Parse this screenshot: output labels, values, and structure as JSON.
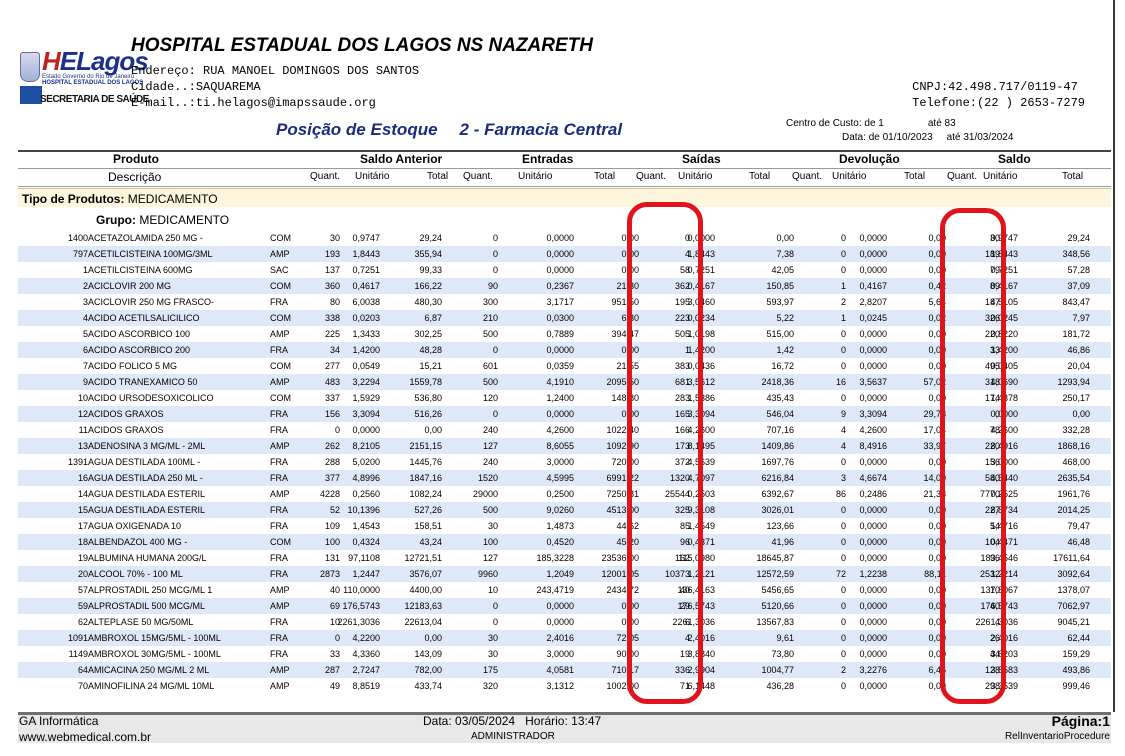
{
  "logo": {
    "brand_prefix": "H",
    "brand_rest": "ELagos",
    "line1": "Estado Governo do Rio de Janeiro",
    "line2": "HOSPITAL ESTADUAL DOS LAGOS",
    "line3": "SECRETARIA DE SAÚDE"
  },
  "header": {
    "title": "HOSPITAL ESTADUAL DOS LAGOS NS NAZARETH",
    "endereco_label": "Endereço:",
    "endereco": "RUA MANOEL DOMINGOS DOS SANTOS",
    "cidade_label": "Cidade..:",
    "cidade": "SAQUAREMA",
    "email_label": "E-mail..:",
    "email": "ti.helagos@imapssaude.org",
    "cnpj_label": "CNPJ:",
    "cnpj": "42.498.717/0119-47",
    "telefone_label": "Telefone:",
    "telefone": "(22 ) 2653-7279"
  },
  "report": {
    "title": "Posição de Estoque",
    "subtitle": "2 - Farmacia Central",
    "centro_label": "Centro de Custo:",
    "centro_de": "de 1",
    "ate_label": "até",
    "centro_ate": "83",
    "data_label": "Data:",
    "data_de": "de 01/10/2023",
    "data_ate": "31/03/2024"
  },
  "columns": {
    "groups": [
      "Produto",
      "Saldo Anterior",
      "Entradas",
      "Saídas",
      "Devolução",
      "Saldo"
    ],
    "sub": [
      "Descrição",
      "Quant.",
      "Unitário",
      "Total",
      "Quant.",
      "Unitário",
      "Total",
      "Quant.",
      "Unitário",
      "Total",
      "Quant.",
      "Unitário",
      "Total",
      "Quant.",
      "Unitário",
      "Total"
    ]
  },
  "tipo": {
    "label": "Tipo de Produtos:",
    "value": "MEDICAMENTO"
  },
  "grupo": {
    "label": "Grupo:",
    "value": "MEDICAMENTO"
  },
  "rows": [
    [
      "1400",
      "ACETAZOLAMIDA 250 MG -",
      "COM",
      "30",
      "0,9747",
      "29,24",
      "0",
      "0,0000",
      "0,00",
      "0",
      "0,0000",
      "0,00",
      "0",
      "0,0000",
      "0,00",
      "30",
      "0,9747",
      "29,24"
    ],
    [
      "797",
      "ACETILCISTEINA 100MG/3ML",
      "AMP",
      "193",
      "1,8443",
      "355,94",
      "0",
      "0,0000",
      "0,00",
      "4",
      "1,8443",
      "7,38",
      "0",
      "0,0000",
      "0,00",
      "189",
      "1,8443",
      "348,56"
    ],
    [
      "1",
      "ACETILCISTEINA 600MG",
      "SAC",
      "137",
      "0,7251",
      "99,33",
      "0",
      "0,0000",
      "0,00",
      "58",
      "0,7251",
      "42,05",
      "0",
      "0,0000",
      "0,00",
      "79",
      "0,7251",
      "57,28"
    ],
    [
      "2",
      "ACICLOVIR 200 MG",
      "COM",
      "360",
      "0,4617",
      "166,22",
      "90",
      "0,2367",
      "21,30",
      "362",
      "0,4167",
      "150,85",
      "1",
      "0,4167",
      "0,42",
      "89",
      "0,4167",
      "37,09"
    ],
    [
      "3",
      "ACICLOVIR 250 MG FRASCO-",
      "FRA",
      "80",
      "6,0038",
      "480,30",
      "300",
      "3,1717",
      "951,50",
      "195",
      "3,0460",
      "593,97",
      "2",
      "2,8207",
      "5,64",
      "187",
      "4,5105",
      "843,47"
    ],
    [
      "4",
      "ACIDO ACETILSALICILICO",
      "COM",
      "338",
      "0,0203",
      "6,87",
      "210",
      "0,0300",
      "6,30",
      "223",
      "0,0234",
      "5,22",
      "1",
      "0,0245",
      "0,02",
      "326",
      "0,0245",
      "7,97"
    ],
    [
      "5",
      "ACIDO ASCORBICO 100",
      "AMP",
      "225",
      "1,3433",
      "302,25",
      "500",
      "0,7889",
      "394,47",
      "505",
      "1,0198",
      "515,00",
      "0",
      "0,0000",
      "0,00",
      "220",
      "0,8220",
      "181,72"
    ],
    [
      "6",
      "ACIDO ASCORBICO 200",
      "FRA",
      "34",
      "1,4200",
      "48,28",
      "0",
      "0,0000",
      "0,00",
      "1",
      "1,4200",
      "1,42",
      "0",
      "0,0000",
      "0,00",
      "33",
      "1,4200",
      "46,86"
    ],
    [
      "7",
      "ACIDO FOLICO 5 MG",
      "COM",
      "277",
      "0,0549",
      "15,21",
      "601",
      "0,0359",
      "21,55",
      "383",
      "0,0436",
      "16,72",
      "0",
      "0,0000",
      "0,00",
      "495",
      "0,0405",
      "20,04"
    ],
    [
      "9",
      "ACIDO TRANEXAMICO 50",
      "AMP",
      "483",
      "3,2294",
      "1559,78",
      "500",
      "4,1910",
      "2095,50",
      "681",
      "3,5612",
      "2418,36",
      "16",
      "3,5637",
      "57,02",
      "318",
      "4,0690",
      "1293,94"
    ],
    [
      "10",
      "ACIDO URSODESOXICOLICO",
      "COM",
      "337",
      "1,5929",
      "536,80",
      "120",
      "1,2400",
      "148,80",
      "283",
      "1,5386",
      "435,43",
      "0",
      "0,0000",
      "0,00",
      "174",
      "1,4378",
      "250,17"
    ],
    [
      "12",
      "ACIDOS GRAXOS",
      "FRA",
      "156",
      "3,3094",
      "516,26",
      "0",
      "0,0000",
      "0,00",
      "165",
      "3,3094",
      "546,04",
      "9",
      "3,3094",
      "29,78",
      "0",
      "0,0000",
      "0,00"
    ],
    [
      "11",
      "ACIDOS GRAXOS",
      "FRA",
      "0",
      "0,0000",
      "0,00",
      "240",
      "4,2600",
      "1022,40",
      "166",
      "4,2600",
      "707,16",
      "4",
      "4,2600",
      "17,04",
      "78",
      "4,2600",
      "332,28"
    ],
    [
      "13",
      "ADENOSINA 3 MG/ML - 2ML",
      "AMP",
      "262",
      "8,2105",
      "2151,15",
      "127",
      "8,6055",
      "1092,90",
      "173",
      "8,1495",
      "1409,86",
      "4",
      "8,4916",
      "33,97",
      "220",
      "8,4916",
      "1868,16"
    ],
    [
      "1391",
      "AGUA DESTILADA 100ML -",
      "FRA",
      "288",
      "5,0200",
      "1445,76",
      "240",
      "3,0000",
      "720,00",
      "372",
      "4,5639",
      "1697,76",
      "0",
      "0,0000",
      "0,00",
      "156",
      "3,0000",
      "468,00"
    ],
    [
      "16",
      "AGUA DESTILADA 250 ML -",
      "FRA",
      "377",
      "4,8996",
      "1847,16",
      "1520",
      "4,5995",
      "6991,22",
      "1320",
      "4,7097",
      "6216,84",
      "3",
      "4,6674",
      "14,00",
      "580",
      "4,5440",
      "2635,54"
    ],
    [
      "14",
      "AGUA DESTILADA ESTERIL",
      "AMP",
      "4228",
      "0,2560",
      "1082,24",
      "29000",
      "0,2500",
      "7250,81",
      "25544",
      "0,2503",
      "6392,67",
      "86",
      "0,2486",
      "21,38",
      "7770",
      "0,2525",
      "1961,76"
    ],
    [
      "15",
      "AGUA DESTILADA ESTERIL",
      "FRA",
      "52",
      "10,1396",
      "527,26",
      "500",
      "9,0260",
      "4513,00",
      "325",
      "9,3108",
      "3026,01",
      "0",
      "0,0000",
      "0,00",
      "227",
      "8,8734",
      "2014,25"
    ],
    [
      "17",
      "AGUA OXIGENADA 10",
      "FRA",
      "109",
      "1,4543",
      "158,51",
      "30",
      "1,4873",
      "44,62",
      "85",
      "1,4549",
      "123,66",
      "0",
      "0,0000",
      "0,00",
      "54",
      "1,4716",
      "79,47"
    ],
    [
      "18",
      "ALBENDAZOL 400 MG -",
      "COM",
      "100",
      "0,4324",
      "43,24",
      "100",
      "0,4520",
      "45,20",
      "96",
      "0,4371",
      "41,96",
      "0",
      "0,0000",
      "0,00",
      "104",
      "0,4471",
      "46,48"
    ],
    [
      "19",
      "ALBUMINA HUMANA 200G/L",
      "FRA",
      "131",
      "97,1108",
      "12721,51",
      "127",
      "185,3228",
      "23536,00",
      "162",
      "115,0980",
      "18645,87",
      "0",
      "0,0000",
      "0,00",
      "96",
      "183,4546",
      "17611,64"
    ],
    [
      "20",
      "ALCOOL 70% - 100 ML",
      "FRA",
      "2873",
      "1,2447",
      "3576,07",
      "9960",
      "1,2049",
      "12001,05",
      "10373",
      "1,2121",
      "12572,59",
      "72",
      "1,2238",
      "88,11",
      "2532",
      "1,2214",
      "3092,64"
    ],
    [
      "57",
      "ALPROSTADIL 250 MCG/ML 1",
      "AMP",
      "40",
      "110,0000",
      "4400,00",
      "10",
      "243,4719",
      "2434,72",
      "40",
      "136,4163",
      "5456,65",
      "0",
      "0,0000",
      "0,00",
      "10",
      "137,8067",
      "1378,07"
    ],
    [
      "59",
      "ALPROSTADIL 500 MCG/ML",
      "AMP",
      "69",
      "176,5743",
      "12183,63",
      "0",
      "0,0000",
      "0,00",
      "29",
      "176,5743",
      "5120,66",
      "0",
      "0,0000",
      "0,00",
      "40",
      "176,5743",
      "7062,97"
    ],
    [
      "62",
      "ALTEPLASE 50 MG/50ML",
      "FRA",
      "10",
      "2261,3036",
      "22613,04",
      "0",
      "0,0000",
      "0,00",
      "6",
      "2261,3036",
      "13567,83",
      "0",
      "0,0000",
      "0,00",
      "4",
      "2261,3036",
      "9045,21"
    ],
    [
      "1091",
      "AMBROXOL 15MG/5ML - 100ML",
      "FRA",
      "0",
      "4,2200",
      "0,00",
      "30",
      "2,4016",
      "72,05",
      "4",
      "2,4016",
      "9,61",
      "0",
      "0,0000",
      "0,00",
      "26",
      "2,4016",
      "62,44"
    ],
    [
      "1149",
      "AMBROXOL 30MG/5ML - 100ML",
      "FRA",
      "33",
      "4,3360",
      "143,09",
      "30",
      "3,0000",
      "90,00",
      "19",
      "3,8840",
      "73,80",
      "0",
      "0,0000",
      "0,00",
      "44",
      "3,6203",
      "159,29"
    ],
    [
      "64",
      "AMICACINA 250 MG/ML 2 ML",
      "AMP",
      "287",
      "2,7247",
      "782,00",
      "175",
      "4,0581",
      "710,17",
      "336",
      "2,9904",
      "1004,77",
      "2",
      "3,2276",
      "6,46",
      "128",
      "3,8583",
      "493,86"
    ],
    [
      "70",
      "AMINOFILINA 24 MG/ML 10ML",
      "AMP",
      "49",
      "8,8519",
      "433,74",
      "320",
      "3,1312",
      "1002,00",
      "71",
      "6,1448",
      "436,28",
      "0",
      "0,0000",
      "0,00",
      "298",
      "3,3539",
      "999,46"
    ]
  ],
  "footer": {
    "company": "GA Informática",
    "website": "www.webmedical.com.br",
    "data_label": "Data:",
    "data": "03/05/2024",
    "hora_label": "Horário:",
    "hora": "13:47",
    "user": "ADMINISTRADOR",
    "pagina_label": "Página:",
    "pagina": "1",
    "procedure": "RelInventarioProcedure"
  },
  "annotation_color": "#e0151b"
}
